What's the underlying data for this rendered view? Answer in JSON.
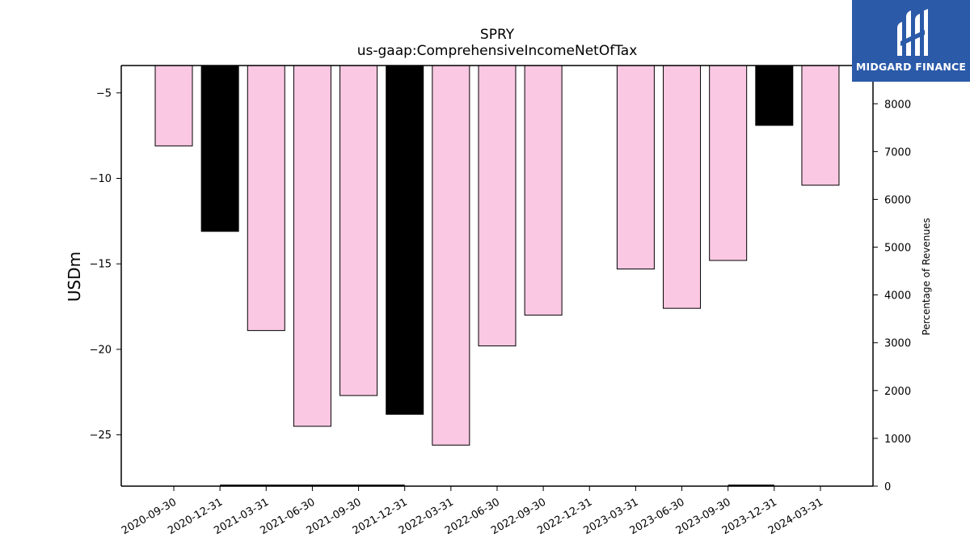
{
  "chart_data": {
    "type": "bar",
    "title": "SPRY",
    "subtitle": "us-gaap:ComprehensiveIncomeNetOfTax",
    "ylabel": "USDm",
    "y2label": "Percentage of Revenues",
    "categories": [
      "2020-09-30",
      "2020-12-31",
      "2021-03-31",
      "2021-06-30",
      "2021-09-30",
      "2021-12-31",
      "2022-03-31",
      "2022-06-30",
      "2022-09-30",
      "2022-12-31",
      "2023-03-31",
      "2023-06-30",
      "2023-09-30",
      "2023-12-31",
      "2024-03-31"
    ],
    "values": [
      -8.1,
      -13.1,
      -18.9,
      -24.5,
      -22.7,
      -23.8,
      -25.6,
      -19.8,
      -18.0,
      null,
      -15.3,
      -17.6,
      -14.8,
      -6.9,
      -10.4
    ],
    "bar_colors": [
      "#fbc8e3",
      "#000000",
      "#fbc8e3",
      "#fbc8e3",
      "#fbc8e3",
      "#000000",
      "#fbc8e3",
      "#fbc8e3",
      "#fbc8e3",
      "#fbc8e3",
      "#fbc8e3",
      "#fbc8e3",
      "#fbc8e3",
      "#000000",
      "#fbc8e3"
    ],
    "secondary_values": [
      null,
      15,
      15,
      15,
      15,
      15,
      null,
      null,
      null,
      null,
      null,
      null,
      15,
      15,
      null
    ],
    "ylim": [
      -28,
      -3.4
    ],
    "yticks": [
      -5,
      -10,
      -15,
      -20,
      -25
    ],
    "y2lim": [
      0,
      8800
    ],
    "y2ticks": [
      0,
      1000,
      2000,
      3000,
      4000,
      5000,
      6000,
      7000,
      8000
    ],
    "grid": false,
    "legend": "none"
  },
  "logo": {
    "name": "MIDGARD FINANCE",
    "icon": "midgard-logo-icon",
    "color": "#2b5aa9"
  }
}
